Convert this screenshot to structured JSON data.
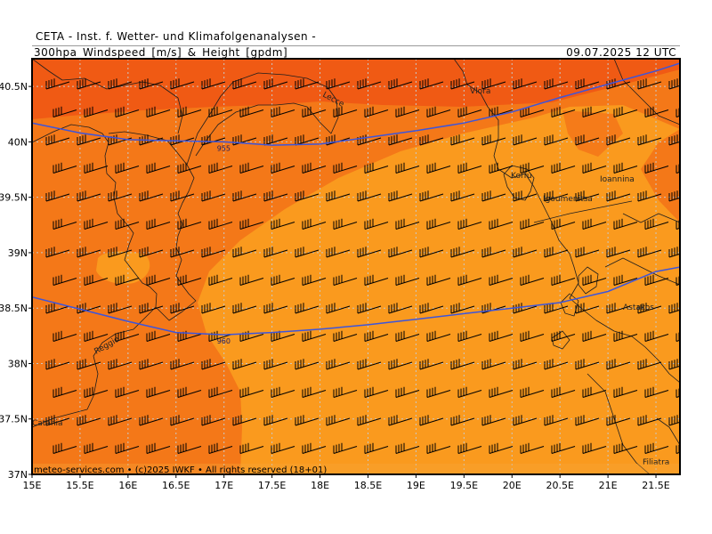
{
  "header": {
    "title": "CETA - Inst. f. Wetter- und Klimafolgenanalysen -",
    "product": "300hpa_Windspeed_[m/s]_&_Height_[gpdm]",
    "valid_time": "09.07.2025 12 UTC"
  },
  "map": {
    "lon_range": [
      15.0,
      21.75
    ],
    "lat_range": [
      37.0,
      40.75
    ],
    "lat_ticks": [
      "40.5N",
      "40N",
      "39.5N",
      "39N",
      "38.5N",
      "38N",
      "37.5N",
      "37N"
    ],
    "lat_values": [
      40.5,
      40.0,
      39.5,
      39.0,
      38.5,
      38.0,
      37.5,
      37.0
    ],
    "lon_ticks": [
      "15E",
      "15.5E",
      "16E",
      "16.5E",
      "17E",
      "17.5E",
      "18E",
      "18.5E",
      "19E",
      "19.5E",
      "20E",
      "20.5E",
      "21E",
      "21.5E"
    ],
    "lon_values": [
      15.0,
      15.5,
      16.0,
      16.5,
      17.0,
      17.5,
      18.0,
      18.5,
      19.0,
      19.5,
      20.0,
      20.5,
      21.0,
      21.5
    ],
    "colors": {
      "wind_high": "#f05a14",
      "wind_mid": "#f47818",
      "wind_low": "#fa9a1e",
      "contour": "#3c55dc",
      "grid": "#c8c8c8",
      "coast": "#1e1e1e"
    },
    "contours": [
      {
        "label": "955",
        "points": [
          [
            15.0,
            40.17
          ],
          [
            15.5,
            40.08
          ],
          [
            16.0,
            40.02
          ],
          [
            16.5,
            40.01
          ],
          [
            17.0,
            40.0
          ],
          [
            17.5,
            39.97
          ],
          [
            18.0,
            39.98
          ],
          [
            18.5,
            40.04
          ],
          [
            19.0,
            40.1
          ],
          [
            19.5,
            40.17
          ],
          [
            20.0,
            40.27
          ],
          [
            20.5,
            40.4
          ],
          [
            21.0,
            40.52
          ],
          [
            21.5,
            40.64
          ],
          [
            21.75,
            40.71
          ]
        ]
      },
      {
        "label": "960",
        "points": [
          [
            15.0,
            38.6
          ],
          [
            15.5,
            38.49
          ],
          [
            16.0,
            38.38
          ],
          [
            16.5,
            38.28
          ],
          [
            17.0,
            38.26
          ],
          [
            17.5,
            38.28
          ],
          [
            18.0,
            38.31
          ],
          [
            18.5,
            38.35
          ],
          [
            19.0,
            38.4
          ],
          [
            19.5,
            38.45
          ],
          [
            20.0,
            38.5
          ],
          [
            20.5,
            38.55
          ],
          [
            21.0,
            38.65
          ],
          [
            21.5,
            38.83
          ],
          [
            21.75,
            38.87
          ]
        ]
      }
    ],
    "places": [
      "Lecce",
      "Vlora",
      "Korfu",
      "Igoumenitsa",
      "Ioannina",
      "Astakos",
      "Reggio",
      "Filiatra",
      "Catania"
    ],
    "credit": "meteo-services.com • (c)2025 IWKF • All rights reserved (18+01)"
  }
}
